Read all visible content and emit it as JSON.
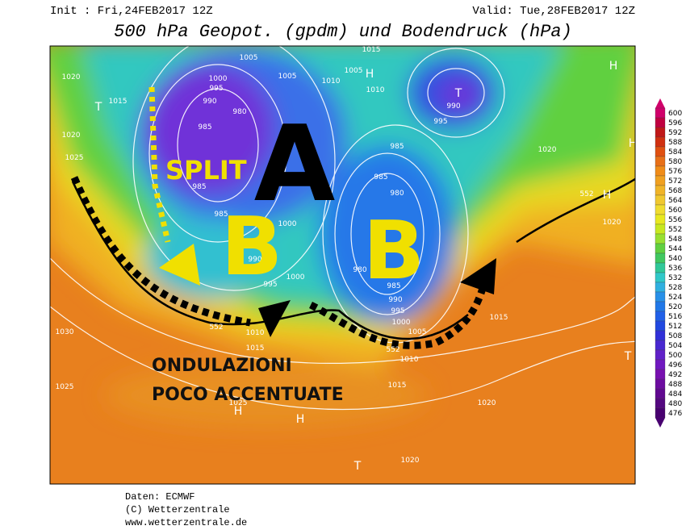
{
  "header": {
    "init": "Init : Fri,24FEB2017 12Z",
    "valid": "Valid: Tue,28FEB2017 12Z",
    "title": "500 hPa Geopot. (gpdm) und Bodendruck (hPa)"
  },
  "colorbar": {
    "labels": [
      "600",
      "596",
      "592",
      "588",
      "584",
      "580",
      "576",
      "572",
      "568",
      "564",
      "560",
      "556",
      "552",
      "548",
      "544",
      "540",
      "536",
      "532",
      "528",
      "524",
      "520",
      "516",
      "512",
      "508",
      "504",
      "500",
      "496",
      "492",
      "488",
      "484",
      "480",
      "476"
    ]
  },
  "annotations": {
    "split": "SPLIT",
    "a": "A",
    "b_west": "B",
    "b_east": "B",
    "note_line1": "ONDULAZIONI",
    "note_line2": "POCO ACCENTUATE"
  },
  "isobar_labels": [
    "1005",
    "1000",
    "995",
    "990",
    "985",
    "980",
    "1005",
    "1010",
    "1005",
    "1015",
    "1010",
    "990",
    "995",
    "1020",
    "1015",
    "1020",
    "1025",
    "985",
    "985",
    "990",
    "995",
    "1000",
    "1000",
    "985",
    "985",
    "980",
    "980",
    "985",
    "990",
    "995",
    "1000",
    "1005",
    "1010",
    "1015",
    "1015",
    "1010",
    "1020",
    "1020",
    "1015",
    "1020",
    "1020",
    "1025",
    "1030",
    "1025",
    "552",
    "552",
    "552"
  ],
  "pressure_centers": [
    "H",
    "H",
    "H",
    "H",
    "H",
    "H",
    "T",
    "T",
    "T",
    "T"
  ],
  "footer": {
    "source": "Daten: ECMWF",
    "copyright": "(C) Wetterzentrale",
    "url": "www.wetterzentrale.de"
  }
}
